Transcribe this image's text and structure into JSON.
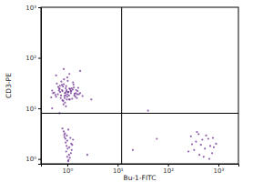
{
  "chart_data": {
    "type": "scatter",
    "x_label": "Bu-1-FITC",
    "y_label": "CD3-PE",
    "log": true,
    "color": "#6b2c91",
    "marker": "dot",
    "xlim": [
      0.3,
      2500
    ],
    "ylim": [
      0.8,
      1000
    ],
    "xticks": [
      {
        "value": 1,
        "label": "10⁰"
      },
      {
        "value": 10,
        "label": "10¹"
      },
      {
        "value": 100,
        "label": "10²"
      },
      {
        "value": 1000,
        "label": "10³"
      }
    ],
    "yticks": [
      {
        "value": 1,
        "label": "10⁰"
      },
      {
        "value": 10,
        "label": "10¹"
      },
      {
        "value": 100,
        "label": "10²"
      },
      {
        "value": 1000,
        "label": "10³"
      }
    ],
    "quadrant_gate": {
      "x": 12,
      "y": 8
    },
    "x": [
      0.9,
      1.15,
      0.75,
      1.35,
      0.6,
      1.6,
      0.85,
      1.0,
      1.25,
      0.68,
      0.95,
      1.4,
      0.8,
      1.05,
      0.7,
      1.55,
      0.55,
      1.3,
      0.88,
      1.1,
      0.65,
      1.8,
      0.98,
      0.78,
      1.2,
      0.83,
      1.5,
      0.72,
      1.02,
      0.92,
      0.5,
      1.45,
      0.82,
      1.18,
      0.74,
      1.65,
      0.96,
      0.62,
      1.28,
      0.9,
      1.08,
      0.7,
      1.48,
      0.86,
      1.0,
      0.58,
      1.33,
      0.8,
      1.12,
      0.93,
      0.66,
      1.7,
      0.89,
      1.04,
      0.76,
      1.38,
      0.97,
      0.52,
      1.22,
      0.84,
      2.0,
      0.48,
      1.0,
      0.79,
      1.16,
      0.94,
      1.58,
      0.71,
      1.09,
      0.91,
      1.05,
      0.9,
      1.15,
      0.98,
      1.2,
      0.85,
      1.1,
      1.0,
      0.95,
      1.25,
      0.88,
      1.08,
      1.02,
      0.93,
      1.18,
      0.8,
      1.12,
      0.97,
      1.3,
      1.0,
      0.92,
      1.06,
      1.22,
      0.87,
      1.04,
      360,
      540,
      285,
      750,
      450,
      630,
      255,
      900,
      405,
      510,
      690,
      330,
      570,
      810,
      420,
      480,
      300,
      660,
      780,
      375,
      3,
      0.5,
      20,
      40,
      2.5,
      0.6,
      1.8,
      60,
      0.85,
      1.1,
      0.7
    ],
    "values": [
      20,
      24,
      18,
      26,
      17,
      22,
      30,
      19,
      15.5,
      22.5,
      27.5,
      19.5,
      14.5,
      21,
      25,
      16,
      20.5,
      32.5,
      17.5,
      24.5,
      19,
      20,
      15,
      29,
      22,
      14,
      23,
      21,
      35,
      18,
      22.5,
      17,
      27,
      20,
      16,
      25.5,
      21.5,
      31,
      23.5,
      13,
      18,
      24,
      20,
      37.5,
      17,
      18.5,
      29.5,
      22,
      15,
      25,
      26.5,
      19,
      16,
      21,
      34,
      18,
      23,
      20,
      25,
      12,
      17.5,
      16.5,
      41,
      23,
      22,
      11,
      19,
      28,
      15,
      20.5,
      3.8,
      3.2,
      2.6,
      2.9,
      2.0,
      3.5,
      1.7,
      2.3,
      1.4,
      1.9,
      2.7,
      1.2,
      1.6,
      2.1,
      1.3,
      4.0,
      1.05,
      1.8,
      2.4,
      1.1,
      2.5,
      0.95,
      1.5,
      3.0,
      0.9,
      2.2,
      1.6,
      2.8,
      1.3,
      1.9,
      2.5,
      1.4,
      2.0,
      3.1,
      1.1,
      1.8,
      1.5,
      2.9,
      1.7,
      1.2,
      2.4,
      1.95,
      1.0,
      2.6,
      3.4,
      15,
      10,
      1.5,
      9,
      1.2,
      45,
      55,
      2.5,
      60,
      48,
      8
    ]
  }
}
